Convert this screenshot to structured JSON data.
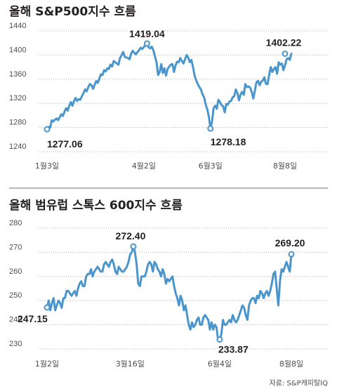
{
  "colors": {
    "line": "#4a96cc",
    "text": "#231f20",
    "grid": "#b3b3b3",
    "marker_fill": "#ffffff"
  },
  "source": "자료: S&P캐피탈IQ",
  "chart_data": [
    {
      "type": "line",
      "title": "올해 S&P500지수 흐름",
      "xlabel": "",
      "ylabel": "",
      "ylim": [
        1240,
        1440
      ],
      "yticks": [
        "1440",
        "1400",
        "1360",
        "1320",
        "1280",
        "1240"
      ],
      "ytick_values": [
        1440,
        1400,
        1360,
        1320,
        1280,
        1240
      ],
      "xticks": [
        "1월3일",
        "4월2일",
        "6월3일",
        "8월8일"
      ],
      "xtick_positions": [
        0,
        61,
        103,
        150
      ],
      "grid": true,
      "annotations": [
        {
          "text": "1277.06",
          "x": 0,
          "y": 1277.06
        },
        {
          "text": "1419.04",
          "x": 63,
          "y": 1419.04
        },
        {
          "text": "1278.18",
          "x": 103,
          "y": 1278.18
        },
        {
          "text": "1402.22",
          "x": 150,
          "y": 1402.22
        }
      ],
      "series": [
        {
          "values": [
            1277.06,
            1281,
            1280,
            1292,
            1290,
            1293,
            1295,
            1292,
            1297,
            1302,
            1299,
            1306,
            1312,
            1308,
            1316,
            1322,
            1316,
            1324,
            1329,
            1324,
            1327,
            1326,
            1332,
            1337,
            1343,
            1340,
            1347,
            1352,
            1350,
            1344,
            1351,
            1357,
            1354,
            1361,
            1368,
            1367,
            1375,
            1373,
            1378,
            1377,
            1384,
            1381,
            1390,
            1388,
            1386,
            1384,
            1395,
            1400,
            1405,
            1397,
            1396,
            1395,
            1393,
            1402,
            1407,
            1404,
            1401,
            1405,
            1408,
            1412,
            1410,
            1413,
            1416,
            1419.04,
            1413,
            1411,
            1414,
            1408,
            1398,
            1388,
            1367,
            1372,
            1385,
            1370,
            1378,
            1366,
            1377,
            1381,
            1384,
            1385,
            1372,
            1383,
            1389,
            1388,
            1395,
            1390,
            1386,
            1393,
            1400,
            1396,
            1388,
            1392,
            1380,
            1366,
            1358,
            1352,
            1347,
            1343,
            1335,
            1330,
            1318,
            1310,
            1298,
            1278.18,
            1290,
            1312,
            1316,
            1311,
            1326,
            1322,
            1317,
            1315,
            1305,
            1319,
            1318,
            1323,
            1324,
            1330,
            1332,
            1343,
            1337,
            1325,
            1335,
            1339,
            1334,
            1352,
            1347,
            1348,
            1346,
            1339,
            1328,
            1341,
            1355,
            1357,
            1350,
            1356,
            1358,
            1363,
            1352,
            1352,
            1367,
            1380,
            1372,
            1377,
            1380,
            1369,
            1388,
            1384,
            1386,
            1375,
            1383,
            1393,
            1395,
            1392,
            1402.22
          ]
        }
      ]
    },
    {
      "type": "line",
      "title": "올해 범유럽 스톡스 600지수 흐름",
      "xlabel": "",
      "ylabel": "",
      "ylim": [
        230,
        280
      ],
      "yticks": [
        "280",
        "270",
        "260",
        "250",
        "240",
        "230"
      ],
      "ytick_values": [
        280,
        270,
        260,
        250,
        240,
        230
      ],
      "xticks": [
        "1월2일",
        "3월16일",
        "6월4일",
        "8월8일"
      ],
      "xtick_positions": [
        0,
        51,
        106,
        150
      ],
      "grid": true,
      "annotations": [
        {
          "text": "247.15",
          "x": 0,
          "y": 247.15
        },
        {
          "text": "272.40",
          "x": 53,
          "y": 272.4
        },
        {
          "text": "233.87",
          "x": 106,
          "y": 233.87
        },
        {
          "text": "269.20",
          "x": 150,
          "y": 269.2
        }
      ],
      "series": [
        {
          "values": [
            247.15,
            250,
            246,
            249,
            251,
            246,
            248,
            250,
            249,
            247,
            251,
            251,
            254,
            254,
            253,
            252,
            253,
            254,
            252,
            255,
            257,
            258,
            256,
            256,
            260,
            261,
            261,
            263,
            260,
            262,
            263,
            264,
            263,
            262,
            262,
            265,
            266,
            265,
            264,
            266,
            267,
            265,
            262,
            261,
            264,
            263,
            262,
            262,
            263,
            264,
            266,
            269,
            270,
            272.4,
            270,
            265,
            257,
            256,
            260,
            260,
            260,
            262,
            265,
            266,
            265,
            262,
            266,
            265,
            263,
            262,
            260,
            263,
            261,
            257,
            259,
            258,
            259,
            260,
            256,
            253,
            251,
            248,
            252,
            250,
            246,
            248,
            244,
            240,
            238,
            241,
            239,
            240,
            242,
            243,
            240,
            240,
            243,
            244,
            243,
            242,
            238,
            241,
            238,
            240,
            239,
            234,
            233.87,
            236,
            242,
            240,
            240,
            241,
            242,
            241,
            244,
            242,
            241,
            242,
            244,
            246,
            248,
            247,
            244,
            242,
            248,
            250,
            251,
            251,
            249,
            252,
            251,
            254,
            253,
            251,
            253,
            254,
            252,
            254,
            257,
            261,
            262,
            255,
            248,
            258,
            263,
            262,
            264,
            266,
            264,
            262,
            269.2
          ]
        }
      ]
    }
  ]
}
